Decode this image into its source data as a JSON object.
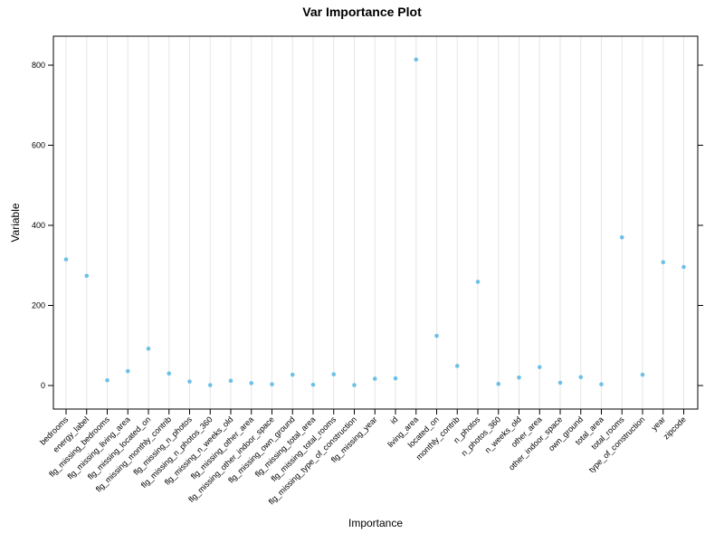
{
  "chart_data": {
    "type": "scatter",
    "title": "Var Importance Plot",
    "xlabel": "Importance",
    "ylabel": "Variable",
    "ylim": [
      -50,
      870
    ],
    "yticks": [
      0,
      200,
      400,
      600,
      800
    ],
    "grid": "vertical",
    "point_color": "#6cc0e8",
    "categories": [
      "bedrooms",
      "energy_label",
      "flg_missing_bedrooms",
      "flg_missing_living_area",
      "flg_missing_located_on",
      "flg_missing_monthly_contrib",
      "flg_missing_n_photos",
      "flg_missing_n_photos_360",
      "flg_missing_n_weeks_old",
      "flg_missing_other_area",
      "flg_missing_other_indoor_space",
      "flg_missing_own_ground",
      "flg_missing_total_area",
      "flg_missing_total_rooms",
      "flg_missing_type_of_construction",
      "flg_missing_year",
      "id",
      "living_area",
      "located_on",
      "monthly_contrib",
      "n_photos",
      "n_photos_360",
      "n_weeks_old",
      "other_area",
      "other_indoor_space",
      "own_ground",
      "total_area",
      "total_rooms",
      "type_of_construction",
      "year",
      "zipcode"
    ],
    "values": [
      315,
      274,
      13,
      36,
      92,
      30,
      10,
      1,
      12,
      6,
      3,
      27,
      2,
      28,
      1,
      17,
      18,
      814,
      124,
      49,
      259,
      4,
      20,
      46,
      7,
      21,
      3,
      370,
      27,
      308,
      296
    ]
  }
}
